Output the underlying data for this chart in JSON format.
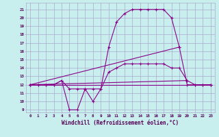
{
  "xlabel": "Windchill (Refroidissement éolien,°C)",
  "bg_color": "#c8eeee",
  "line_color": "#880088",
  "grid_color": "#aaaacc",
  "xlim": [
    -0.5,
    23.5
  ],
  "ylim": [
    8.7,
    21.8
  ],
  "yticks": [
    9,
    10,
    11,
    12,
    13,
    14,
    15,
    16,
    17,
    18,
    19,
    20,
    21
  ],
  "xticks": [
    0,
    1,
    2,
    3,
    4,
    5,
    6,
    7,
    8,
    9,
    10,
    11,
    12,
    13,
    14,
    15,
    16,
    17,
    18,
    19,
    20,
    21,
    22,
    23
  ],
  "series": [
    {
      "x": [
        0,
        1,
        2,
        3,
        4,
        5,
        6,
        7,
        8,
        9,
        10,
        11,
        12,
        13,
        14,
        15,
        16,
        17,
        18,
        19,
        20,
        21,
        22,
        23
      ],
      "y": [
        12,
        12,
        12,
        12,
        12.5,
        9.0,
        9.0,
        11.5,
        11.5,
        11.5,
        16.5,
        19.5,
        20.5,
        21.0,
        21.0,
        21.0,
        21.0,
        21.0,
        20.0,
        16.5,
        12.0,
        12.0,
        12.0,
        12.0
      ]
    },
    {
      "x": [
        0,
        1,
        2,
        3,
        4,
        5,
        6,
        7,
        8,
        9,
        10,
        11,
        12,
        13,
        14,
        15,
        16,
        17,
        18,
        19,
        20,
        21,
        22,
        23
      ],
      "y": [
        12,
        12,
        12,
        12,
        12.5,
        11.5,
        11.5,
        11.5,
        10.0,
        11.5,
        13.5,
        14.0,
        14.5,
        14.5,
        14.5,
        14.5,
        14.5,
        14.5,
        14.0,
        14.0,
        12.5,
        12.0,
        12.0,
        12.0
      ]
    },
    {
      "x": [
        0,
        23
      ],
      "y": [
        12,
        12
      ]
    },
    {
      "x": [
        0,
        19
      ],
      "y": [
        12,
        16.5
      ]
    },
    {
      "x": [
        0,
        20
      ],
      "y": [
        12,
        12.5
      ]
    }
  ]
}
